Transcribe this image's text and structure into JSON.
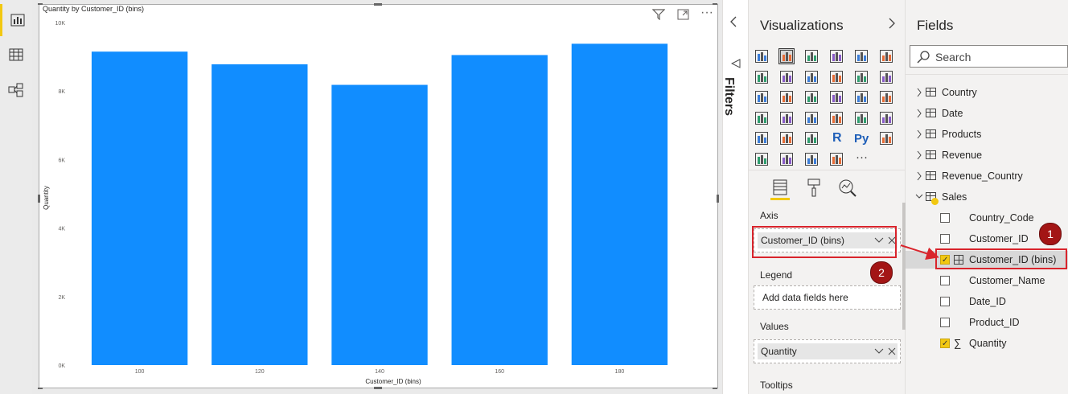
{
  "left_rail": {
    "items": [
      {
        "icon": "report-view-icon",
        "active": true
      },
      {
        "icon": "data-view-icon",
        "active": false
      },
      {
        "icon": "model-view-icon",
        "active": false
      }
    ]
  },
  "visual": {
    "header_icons": [
      "filter-icon",
      "focus-mode-icon",
      "more-options-icon"
    ],
    "more_options_glyph": "···"
  },
  "chart_data": {
    "type": "bar",
    "title": "Quantity by Customer_ID (bins)",
    "xlabel": "Customer_ID (bins)",
    "ylabel": "Quantity",
    "categories": [
      "100",
      "",
      "120",
      "",
      "140",
      "",
      "160",
      "",
      "180"
    ],
    "bars": [
      {
        "x": 100,
        "value": 9150
      },
      {
        "x": 120,
        "value": 8780
      },
      {
        "x": 140,
        "value": 8180
      },
      {
        "x": 160,
        "value": 9050
      },
      {
        "x": 180,
        "value": 9380
      }
    ],
    "x_ticks": [
      "100",
      "120",
      "140",
      "160",
      "180"
    ],
    "y_ticks": [
      "0K",
      "2K",
      "4K",
      "6K",
      "8K",
      "10K"
    ],
    "ylim": [
      0,
      10000
    ],
    "bar_color": "#118dff",
    "grid": false
  },
  "filters": {
    "label": "Filters"
  },
  "viz_pane": {
    "title": "Visualizations",
    "icons": [
      "stacked-bar-icon",
      "stacked-column-icon",
      "clustered-bar-icon",
      "clustered-column-icon",
      "100-stacked-bar-icon",
      "100-stacked-column-icon",
      "line-chart-icon",
      "area-chart-icon",
      "stacked-area-icon",
      "line-clustered-column-icon",
      "line-stacked-column-icon",
      "ribbon-chart-icon",
      "waterfall-icon",
      "funnel-icon",
      "scatter-icon",
      "pie-icon",
      "donut-icon",
      "treemap-icon",
      "map-icon",
      "filled-map-icon",
      "gauge-icon",
      "card-icon",
      "multi-row-card-icon",
      "kpi-icon",
      "slicer-icon",
      "table-icon",
      "matrix-icon",
      "r-visual-icon",
      "python-visual-icon",
      "key-influencers-icon",
      "decomposition-tree-icon",
      "qa-icon",
      "paginated-report-icon",
      "power-apps-icon",
      "more-visuals-icon"
    ],
    "r_label": "R",
    "py_label": "Py",
    "more_label": "···",
    "tabs": [
      "fields-tab-icon",
      "format-tab-icon",
      "analytics-tab-icon"
    ],
    "wells": {
      "axis_label": "Axis",
      "axis_value": "Customer_ID (bins)",
      "legend_label": "Legend",
      "legend_placeholder": "Add data fields here",
      "values_label": "Values",
      "values_value": "Quantity",
      "tooltips_label": "Tooltips"
    }
  },
  "fields_pane": {
    "title": "Fields",
    "search_placeholder": "Search",
    "tables": [
      {
        "name": "Country",
        "type": "table"
      },
      {
        "name": "Date",
        "type": "table"
      },
      {
        "name": "Products",
        "type": "table"
      },
      {
        "name": "Revenue",
        "type": "calc-table"
      },
      {
        "name": "Revenue_Country",
        "type": "calc-table"
      },
      {
        "name": "Sales",
        "type": "table",
        "expanded": true
      }
    ],
    "sales_fields": [
      {
        "name": "Country_Code",
        "checked": false
      },
      {
        "name": "Customer_ID",
        "checked": false
      },
      {
        "name": "Customer_ID (bins)",
        "checked": true
      },
      {
        "name": "Customer_Name",
        "checked": false
      },
      {
        "name": "Date_ID",
        "checked": false
      },
      {
        "name": "Product_ID",
        "checked": false
      },
      {
        "name": "Quantity",
        "checked": true,
        "sigma": "∑"
      }
    ]
  },
  "annotations": {
    "badge1": "1",
    "badge2": "2",
    "highlight_color": "#d9242c"
  }
}
